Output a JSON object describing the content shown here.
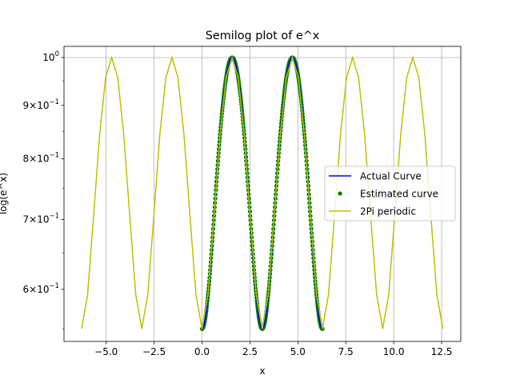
{
  "chart_data": {
    "type": "line",
    "title": "Semilog plot of e^x",
    "xlabel": "x",
    "ylabel": "log(e^x)",
    "y_scale": "log",
    "grid": true,
    "legend_position": "center-right",
    "xlim": [
      -7.2,
      13.5
    ],
    "ylim": [
      0.535,
      1.025
    ],
    "x_ticks": [
      -5.0,
      -2.5,
      0.0,
      2.5,
      5.0,
      7.5,
      10.0,
      12.5
    ],
    "x_tick_labels": [
      "−5.0",
      "−2.5",
      "0.0",
      "2.5",
      "5.0",
      "7.5",
      "10.0",
      "12.5"
    ],
    "y_ticks": [
      {
        "value": 1.0,
        "base": "10",
        "exp": "0"
      },
      {
        "value": 0.9,
        "mant": "9",
        "base": "10",
        "exp": "−1"
      },
      {
        "value": 0.8,
        "mant": "8",
        "base": "10",
        "exp": "−1"
      },
      {
        "value": 0.7,
        "mant": "7",
        "base": "10",
        "exp": "−1"
      },
      {
        "value": 0.6,
        "mant": "6",
        "base": "10",
        "exp": "−1"
      }
    ],
    "series": [
      {
        "name": "Actual Curve",
        "style": "line",
        "color": "#0000ff",
        "x_range": [
          0,
          6.283
        ],
        "y_formula": "exp(sin(x)^2) scaled"
      },
      {
        "name": "Estimated curve",
        "style": "markers",
        "color": "#008000",
        "x_range": [
          0,
          6.283
        ],
        "n_points": 400
      },
      {
        "name": "2Pi periodic",
        "style": "line",
        "color": "#bfbf00",
        "x_range": [
          -6.283,
          12.566
        ],
        "n_points": 60
      }
    ],
    "curve_min": 0.55,
    "curve_max": 1.0
  }
}
